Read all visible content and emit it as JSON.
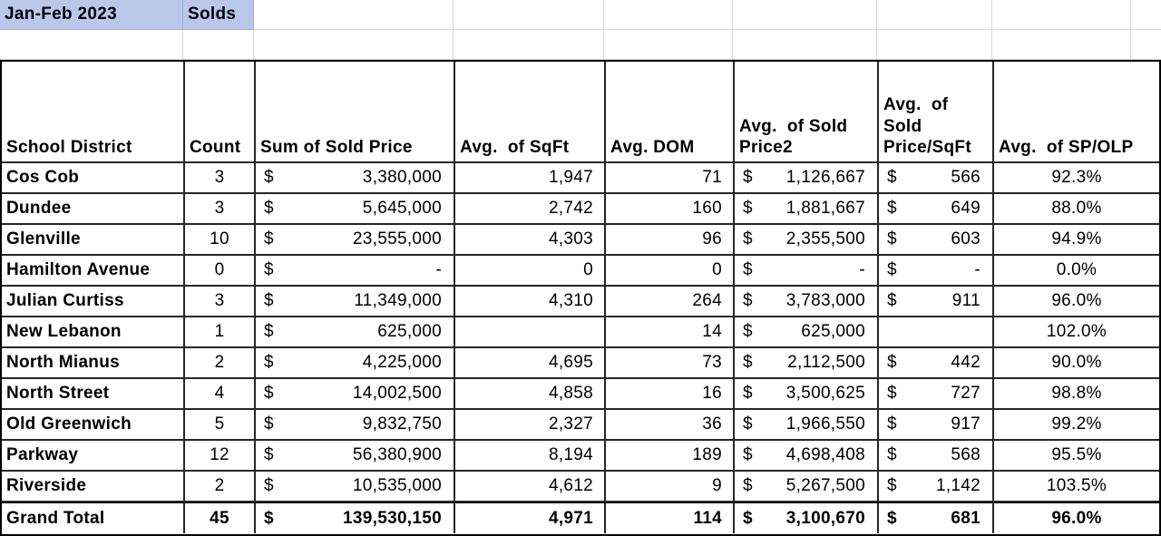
{
  "sheet_header": {
    "period": "Jan-Feb 2023",
    "type": "Solds"
  },
  "colors": {
    "highlight_fill": "#b9c8ea",
    "grid_line": "#d6d6d6",
    "table_border": "#000000"
  },
  "pivot_table": {
    "currency_symbol": "$",
    "columns": [
      {
        "key": "school_district",
        "label": "School District",
        "type": "text"
      },
      {
        "key": "count",
        "label": "Count",
        "type": "center"
      },
      {
        "key": "sum_sold_price",
        "label": "Sum of Sold Price",
        "type": "currency"
      },
      {
        "key": "avg_sqft",
        "label": "Avg.  of SqFt",
        "type": "number"
      },
      {
        "key": "avg_dom",
        "label": "Avg. DOM",
        "type": "number"
      },
      {
        "key": "avg_sold_price2",
        "label": "Avg.  of Sold\nPrice2",
        "type": "currency"
      },
      {
        "key": "avg_sold_price_sqft",
        "label": "Avg.  of\nSold\nPrice/SqFt",
        "type": "currency"
      },
      {
        "key": "avg_sp_olp",
        "label": "Avg.  of SP/OLP",
        "type": "percent"
      }
    ],
    "rows": [
      {
        "school_district": "Cos Cob",
        "count": "3",
        "sum_sold_price": "3,380,000",
        "avg_sqft": "1,947",
        "avg_dom": "71",
        "avg_sold_price2": "1,126,667",
        "avg_sold_price_sqft": "566",
        "avg_sp_olp": "92.3%"
      },
      {
        "school_district": "Dundee",
        "count": "3",
        "sum_sold_price": "5,645,000",
        "avg_sqft": "2,742",
        "avg_dom": "160",
        "avg_sold_price2": "1,881,667",
        "avg_sold_price_sqft": "649",
        "avg_sp_olp": "88.0%"
      },
      {
        "school_district": "Glenville",
        "count": "10",
        "sum_sold_price": "23,555,000",
        "avg_sqft": "4,303",
        "avg_dom": "96",
        "avg_sold_price2": "2,355,500",
        "avg_sold_price_sqft": "603",
        "avg_sp_olp": "94.9%"
      },
      {
        "school_district": "Hamilton Avenue",
        "count": "0",
        "sum_sold_price": "-",
        "avg_sqft": "0",
        "avg_dom": "0",
        "avg_sold_price2": "-",
        "avg_sold_price_sqft": "-",
        "avg_sp_olp": "0.0%"
      },
      {
        "school_district": "Julian Curtiss",
        "count": "3",
        "sum_sold_price": "11,349,000",
        "avg_sqft": "4,310",
        "avg_dom": "264",
        "avg_sold_price2": "3,783,000",
        "avg_sold_price_sqft": "911",
        "avg_sp_olp": "96.0%"
      },
      {
        "school_district": "New Lebanon",
        "count": "1",
        "sum_sold_price": "625,000",
        "avg_sqft": "",
        "avg_dom": "14",
        "avg_sold_price2": "625,000",
        "avg_sold_price_sqft": "",
        "avg_sp_olp": "102.0%"
      },
      {
        "school_district": "North Mianus",
        "count": "2",
        "sum_sold_price": "4,225,000",
        "avg_sqft": "4,695",
        "avg_dom": "73",
        "avg_sold_price2": "2,112,500",
        "avg_sold_price_sqft": "442",
        "avg_sp_olp": "90.0%"
      },
      {
        "school_district": "North Street",
        "count": "4",
        "sum_sold_price": "14,002,500",
        "avg_sqft": "4,858",
        "avg_dom": "16",
        "avg_sold_price2": "3,500,625",
        "avg_sold_price_sqft": "727",
        "avg_sp_olp": "98.8%"
      },
      {
        "school_district": "Old Greenwich",
        "count": "5",
        "sum_sold_price": "9,832,750",
        "avg_sqft": "2,327",
        "avg_dom": "36",
        "avg_sold_price2": "1,966,550",
        "avg_sold_price_sqft": "917",
        "avg_sp_olp": "99.2%"
      },
      {
        "school_district": "Parkway",
        "count": "12",
        "sum_sold_price": "56,380,900",
        "avg_sqft": "8,194",
        "avg_dom": "189",
        "avg_sold_price2": "4,698,408",
        "avg_sold_price_sqft": "568",
        "avg_sp_olp": "95.5%"
      },
      {
        "school_district": "Riverside",
        "count": "2",
        "sum_sold_price": "10,535,000",
        "avg_sqft": "4,612",
        "avg_dom": "9",
        "avg_sold_price2": "5,267,500",
        "avg_sold_price_sqft": "1,142",
        "avg_sp_olp": "103.5%"
      }
    ],
    "grand_total": {
      "school_district": "Grand Total",
      "count": "45",
      "sum_sold_price": "139,530,150",
      "avg_sqft": "4,971",
      "avg_dom": "114",
      "avg_sold_price2": "3,100,670",
      "avg_sold_price_sqft": "681",
      "avg_sp_olp": "96.0%"
    }
  }
}
